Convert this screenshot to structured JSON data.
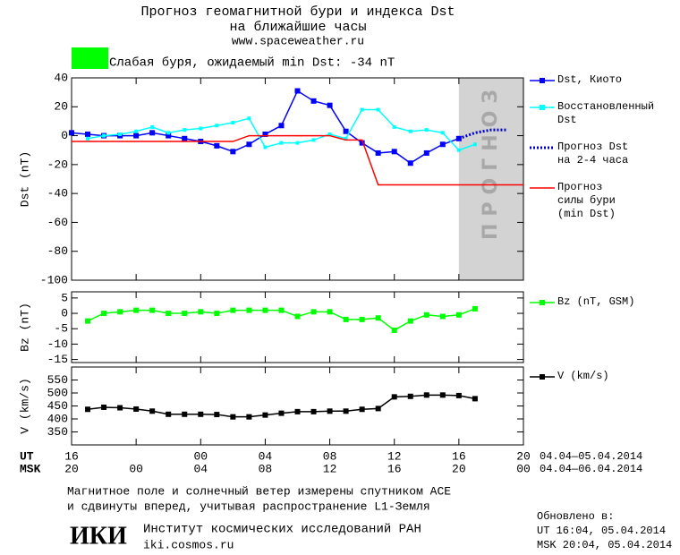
{
  "chart_data": [
    {
      "type": "line",
      "title": [
        "Прогноз геомагнитной бури и индекса Dst",
        "на ближайшие часы"
      ],
      "subtitle": "www.spaceweather.ru",
      "annotation": {
        "text": "Слабая буря, ожидаемый min Dst: -34 nT",
        "color": "#00ff00"
      },
      "ylabel": "Dst (nT)",
      "xlim": [
        16,
        44
      ],
      "ylim": [
        -100,
        40
      ],
      "yticks": [
        40,
        20,
        0,
        -20,
        -40,
        -60,
        -80,
        -100
      ],
      "forecast_region": {
        "x": [
          40,
          44
        ],
        "label": "ПРОГНОЗ",
        "color": "#d3d3d3"
      },
      "series": [
        {
          "name": "Dst, Киото",
          "color": "#0000ff",
          "marker": "square",
          "x": [
            16,
            17,
            18,
            19,
            20,
            21,
            22,
            23,
            24,
            25,
            26,
            27,
            28,
            29,
            30,
            31,
            32,
            33,
            34,
            35,
            36,
            37,
            38,
            39,
            40
          ],
          "values": [
            2,
            1,
            0,
            0,
            0,
            2,
            0,
            -2,
            -4,
            -7,
            -11,
            -6,
            1,
            7,
            31,
            24,
            21,
            3,
            -5,
            -12,
            -11,
            -19,
            -12,
            -6,
            -2
          ]
        },
        {
          "name": "Восстановленный\nDst",
          "color": "#00ffff",
          "marker": "small-square",
          "x": [
            17,
            18,
            19,
            20,
            21,
            22,
            23,
            24,
            25,
            26,
            27,
            28,
            29,
            30,
            31,
            32,
            33,
            34,
            35,
            36,
            37,
            38,
            39,
            40,
            41
          ],
          "values": [
            -2,
            0,
            1,
            3,
            6,
            2,
            4,
            5,
            7,
            9,
            12,
            -8,
            -5,
            -5,
            -3,
            1,
            -2,
            18,
            18,
            6,
            3,
            4,
            2,
            -10,
            -6
          ]
        },
        {
          "name": "Прогноз Dst\nна 2-4 часа",
          "color": "#0000cc",
          "dash": "dotted",
          "x": [
            40,
            41,
            42,
            43
          ],
          "values": [
            -2,
            2,
            4,
            4
          ]
        },
        {
          "name": "Прогноз\nсилы бури\n(min Dst)",
          "color": "#ff0000",
          "x": [
            16,
            26,
            27,
            32,
            33,
            34,
            35,
            44
          ],
          "values": [
            -4,
            -4,
            0,
            0,
            -3,
            -3,
            -34,
            -34
          ]
        }
      ]
    },
    {
      "type": "line",
      "ylabel": "Bz (nT)",
      "xlim": [
        16,
        44
      ],
      "ylim": [
        -16,
        7
      ],
      "yticks": [
        5,
        0,
        -5,
        -10,
        -15
      ],
      "series": [
        {
          "name": "Bz (nT, GSM)",
          "color": "#00ff00",
          "marker": "square",
          "x": [
            17,
            18,
            19,
            20,
            21,
            22,
            23,
            24,
            25,
            26,
            27,
            28,
            29,
            30,
            31,
            32,
            33,
            34,
            35,
            36,
            37,
            38,
            39,
            40,
            41
          ],
          "values": [
            -2.5,
            0,
            0.5,
            1,
            1,
            0,
            0,
            0.5,
            0,
            1,
            1,
            1,
            1,
            -1,
            0.5,
            0.5,
            -2,
            -2,
            -1.5,
            -5.5,
            -2.5,
            -0.5,
            -1,
            -0.5,
            1.5
          ]
        }
      ]
    },
    {
      "type": "line",
      "ylabel": "V (km/s)",
      "xlim": [
        16,
        44
      ],
      "ylim": [
        300,
        600
      ],
      "yticks": [
        550,
        500,
        450,
        400,
        350
      ],
      "series": [
        {
          "name": "V (km/s)",
          "color": "#000000",
          "marker": "square",
          "x": [
            17,
            18,
            19,
            20,
            21,
            22,
            23,
            24,
            25,
            26,
            27,
            28,
            29,
            30,
            31,
            32,
            33,
            34,
            35,
            36,
            37,
            38,
            39,
            40,
            41
          ],
          "values": [
            437,
            445,
            443,
            438,
            430,
            418,
            418,
            418,
            417,
            408,
            408,
            415,
            422,
            428,
            428,
            430,
            430,
            437,
            440,
            485,
            487,
            492,
            492,
            490,
            478
          ]
        }
      ],
      "xlabel_ut": "UT",
      "xlabel_msk": "MSK",
      "xticks_ut": [
        {
          "value": 16,
          "label": "16"
        },
        {
          "value": 24,
          "label": "00"
        },
        {
          "value": 28,
          "label": "04"
        },
        {
          "value": 32,
          "label": "08"
        },
        {
          "value": 36,
          "label": "12"
        },
        {
          "value": 40,
          "label": "16"
        },
        {
          "value": 44,
          "label": "20"
        }
      ],
      "xticks_msk": [
        {
          "value": 16,
          "label": "20"
        },
        {
          "value": 20,
          "label": "00"
        },
        {
          "value": 24,
          "label": "04"
        },
        {
          "value": 28,
          "label": "08"
        },
        {
          "value": 32,
          "label": "12"
        },
        {
          "value": 36,
          "label": "16"
        },
        {
          "value": 40,
          "label": "20"
        },
        {
          "value": 44,
          "label": "00"
        }
      ],
      "date_range_ut": "04.04—05.04.2014",
      "date_range_msk": "04.04—06.04.2014"
    }
  ],
  "footer": {
    "note": [
      "Магнитное поле и солнечный ветер измерены спутником ACE",
      "и сдвинуты вперед, учитывая распространение L1-Земля"
    ],
    "updated_label": "Обновлено в:",
    "updated_ut": "UT  16:04, 05.04.2014",
    "updated_msk": "MSK 20:04, 05.04.2014",
    "logo": "ИКИ",
    "institute": "Институт космических исследований РАН",
    "website": "iki.cosmos.ru"
  }
}
